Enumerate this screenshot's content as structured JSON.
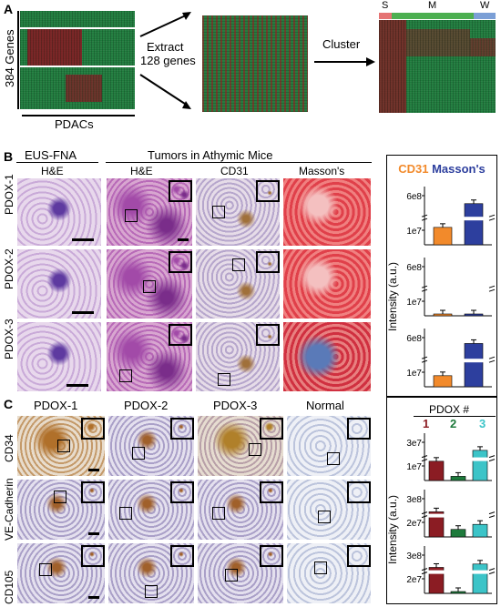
{
  "panels": {
    "A": {
      "label": "A",
      "genes_label": "384 Genes",
      "pdacs_label": "PDACs",
      "extract_label": [
        "Extract",
        "128 genes"
      ],
      "cluster_label": "Cluster",
      "cluster_groups": [
        {
          "label": "S",
          "color": "#e57373"
        },
        {
          "label": "M",
          "color": "#4caf50"
        },
        {
          "label": "W",
          "color": "#7b9fd6"
        }
      ]
    },
    "B": {
      "label": "B",
      "group_headers": [
        "EUS-FNA",
        "Tumors in Athymic Mice"
      ],
      "columns": [
        "H&E",
        "H&E",
        "CD31",
        "Masson's"
      ],
      "rows": [
        "PDOX-1",
        "PDOX-2",
        "PDOX-3"
      ]
    },
    "C": {
      "label": "C",
      "columns": [
        "PDOX-1",
        "PDOX-2",
        "PDOX-3",
        "Normal"
      ],
      "rows": [
        "CD34",
        "VE-Cadherin",
        "CD105"
      ]
    }
  },
  "colors": {
    "cd31": "#f28a2b",
    "massons": "#2d3f9e",
    "pdox1": "#8b1c23",
    "pdox2": "#1e7a3c",
    "pdox3": "#3cc4c8"
  },
  "chart_data": [
    {
      "type": "bar",
      "legend": [
        "CD31",
        "Masson's"
      ],
      "ylabel": "Intensity (a.u.)",
      "ticks": [
        "1e7",
        "6e8"
      ],
      "subplots": [
        {
          "row": "PDOX-1",
          "values": [
            0.33,
            0.78
          ]
        },
        {
          "row": "PDOX-2",
          "values": [
            0.02,
            0.03
          ]
        },
        {
          "row": "PDOX-3",
          "values": [
            0.21,
            0.82
          ]
        }
      ]
    },
    {
      "type": "bar",
      "legend_title": "PDOX #",
      "categories": [
        "1",
        "2",
        "3"
      ],
      "ylabel": "Intensity (a.u.)",
      "subplots": [
        {
          "row": "CD34",
          "ticks": [
            "1e7",
            "3e7"
          ],
          "values": [
            0.46,
            0.1,
            0.72
          ]
        },
        {
          "row": "VE-Cadherin",
          "ticks": [
            "2e7",
            "3e8"
          ],
          "values": [
            0.6,
            0.18,
            0.3
          ]
        },
        {
          "row": "CD105",
          "ticks": [
            "2e7",
            "3e8"
          ],
          "values": [
            0.62,
            0.04,
            0.7
          ]
        }
      ]
    }
  ]
}
